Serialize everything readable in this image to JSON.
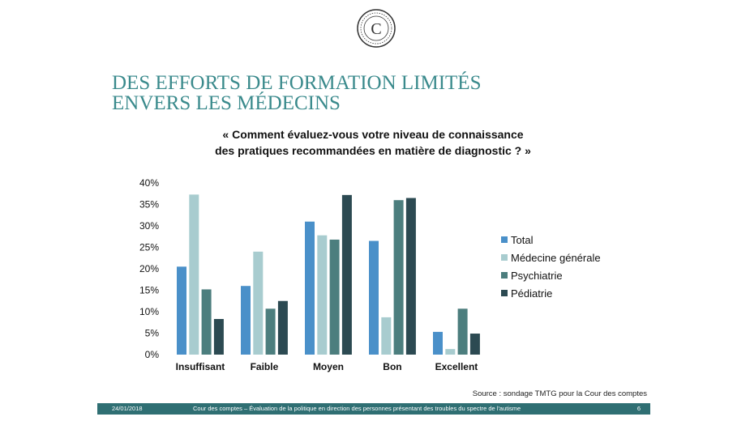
{
  "slide": {
    "title_line1": "DES EFFORTS DE FORMATION LIMITÉS",
    "title_line2": "ENVERS LES MÉDECINS",
    "chart_title_line1": "« Comment évaluez-vous votre niveau de connaissance",
    "chart_title_line2": "des pratiques recommandées en matière de diagnostic ? »",
    "source": "Source : sondage TMTG pour la Cour des comptes",
    "logo_letter": "C"
  },
  "footer": {
    "date": "24/01/2018",
    "text": "Cour des comptes – Évaluation de la politique en direction des personnes présentant des troubles du spectre de l'autisme",
    "page": "6"
  },
  "chart_data": {
    "type": "bar",
    "categories": [
      "Insuffisant",
      "Faible",
      "Moyen",
      "Bon",
      "Excellent"
    ],
    "series": [
      {
        "name": "Total",
        "color": "#4a90c9",
        "values": [
          20.5,
          16,
          31,
          26.5,
          5.3
        ]
      },
      {
        "name": "Médecine générale",
        "color": "#a8cccf",
        "values": [
          37.3,
          24,
          27.8,
          8.7,
          1.3
        ]
      },
      {
        "name": "Psychiatrie",
        "color": "#4c7e7e",
        "values": [
          15.2,
          10.7,
          26.8,
          36,
          10.7
        ]
      },
      {
        "name": "Pédiatrie",
        "color": "#2c4a52",
        "values": [
          8.3,
          12.5,
          37.2,
          36.5,
          4.9
        ]
      }
    ],
    "yticks": [
      "0%",
      "5%",
      "10%",
      "15%",
      "20%",
      "25%",
      "30%",
      "35%",
      "40%"
    ],
    "ylim": [
      0,
      40
    ],
    "grid": false,
    "legend_position": "right"
  }
}
